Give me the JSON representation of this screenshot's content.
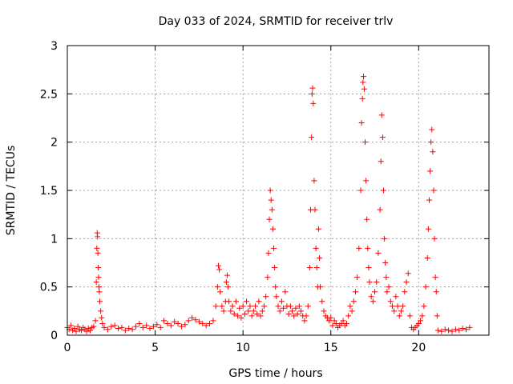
{
  "chart_data": {
    "type": "scatter",
    "title": "Day 033 of 2024, SRMTID for receiver trlv",
    "xlabel": "GPS time / hours",
    "ylabel": "SRMTID / TECUs",
    "xlim": [
      0,
      24
    ],
    "ylim": [
      0,
      3
    ],
    "xticks": [
      0,
      5,
      10,
      15,
      20
    ],
    "xtick_labels": [
      "0",
      "5",
      "10",
      "15",
      "20"
    ],
    "yticks": [
      0,
      0.5,
      1,
      1.5,
      2,
      2.5,
      3
    ],
    "ytick_labels": [
      "0",
      "0.5",
      "1",
      "1.5",
      "2",
      "2.5",
      "3"
    ],
    "grid": true,
    "marker": "+",
    "color": "#ff0000",
    "series": [
      {
        "name": "SRMTID",
        "points": [
          [
            0.0,
            0.08
          ],
          [
            0.1,
            0.06
          ],
          [
            0.2,
            0.1
          ],
          [
            0.3,
            0.05
          ],
          [
            0.4,
            0.07
          ],
          [
            0.5,
            0.04
          ],
          [
            0.6,
            0.09
          ],
          [
            0.7,
            0.06
          ],
          [
            0.8,
            0.05
          ],
          [
            0.9,
            0.08
          ],
          [
            1.0,
            0.06
          ],
          [
            1.1,
            0.04
          ],
          [
            1.2,
            0.07
          ],
          [
            1.3,
            0.05
          ],
          [
            1.4,
            0.08
          ],
          [
            1.5,
            0.09
          ],
          [
            1.6,
            0.15
          ],
          [
            1.65,
            0.55
          ],
          [
            1.68,
            0.9
          ],
          [
            1.7,
            1.06
          ],
          [
            1.72,
            1.02
          ],
          [
            1.74,
            0.85
          ],
          [
            1.76,
            0.7
          ],
          [
            1.78,
            0.6
          ],
          [
            1.8,
            0.5
          ],
          [
            1.82,
            0.45
          ],
          [
            1.85,
            0.35
          ],
          [
            1.9,
            0.25
          ],
          [
            1.95,
            0.18
          ],
          [
            2.0,
            0.12
          ],
          [
            2.1,
            0.08
          ],
          [
            2.3,
            0.06
          ],
          [
            2.5,
            0.09
          ],
          [
            2.7,
            0.1
          ],
          [
            2.9,
            0.07
          ],
          [
            3.1,
            0.08
          ],
          [
            3.3,
            0.05
          ],
          [
            3.5,
            0.07
          ],
          [
            3.7,
            0.06
          ],
          [
            3.9,
            0.09
          ],
          [
            4.1,
            0.12
          ],
          [
            4.3,
            0.08
          ],
          [
            4.5,
            0.1
          ],
          [
            4.7,
            0.07
          ],
          [
            4.9,
            0.09
          ],
          [
            5.1,
            0.11
          ],
          [
            5.3,
            0.08
          ],
          [
            5.5,
            0.15
          ],
          [
            5.7,
            0.12
          ],
          [
            5.9,
            0.1
          ],
          [
            6.1,
            0.14
          ],
          [
            6.3,
            0.12
          ],
          [
            6.5,
            0.09
          ],
          [
            6.7,
            0.11
          ],
          [
            6.9,
            0.15
          ],
          [
            7.1,
            0.18
          ],
          [
            7.3,
            0.16
          ],
          [
            7.5,
            0.14
          ],
          [
            7.7,
            0.12
          ],
          [
            7.9,
            0.1
          ],
          [
            8.1,
            0.12
          ],
          [
            8.3,
            0.15
          ],
          [
            8.45,
            0.3
          ],
          [
            8.55,
            0.5
          ],
          [
            8.6,
            0.72
          ],
          [
            8.65,
            0.68
          ],
          [
            8.7,
            0.45
          ],
          [
            8.8,
            0.3
          ],
          [
            8.9,
            0.25
          ],
          [
            9.0,
            0.35
          ],
          [
            9.05,
            0.55
          ],
          [
            9.1,
            0.62
          ],
          [
            9.15,
            0.5
          ],
          [
            9.2,
            0.35
          ],
          [
            9.3,
            0.25
          ],
          [
            9.4,
            0.3
          ],
          [
            9.5,
            0.22
          ],
          [
            9.6,
            0.35
          ],
          [
            9.7,
            0.2
          ],
          [
            9.8,
            0.28
          ],
          [
            9.9,
            0.18
          ],
          [
            10.0,
            0.3
          ],
          [
            10.1,
            0.22
          ],
          [
            10.2,
            0.35
          ],
          [
            10.3,
            0.25
          ],
          [
            10.4,
            0.3
          ],
          [
            10.5,
            0.2
          ],
          [
            10.6,
            0.25
          ],
          [
            10.7,
            0.3
          ],
          [
            10.8,
            0.22
          ],
          [
            10.9,
            0.35
          ],
          [
            11.0,
            0.2
          ],
          [
            11.1,
            0.25
          ],
          [
            11.2,
            0.3
          ],
          [
            11.3,
            0.4
          ],
          [
            11.4,
            0.6
          ],
          [
            11.45,
            0.85
          ],
          [
            11.5,
            1.2
          ],
          [
            11.55,
            1.5
          ],
          [
            11.6,
            1.4
          ],
          [
            11.65,
            1.3
          ],
          [
            11.7,
            1.1
          ],
          [
            11.75,
            0.9
          ],
          [
            11.8,
            0.7
          ],
          [
            11.85,
            0.5
          ],
          [
            11.9,
            0.4
          ],
          [
            12.0,
            0.3
          ],
          [
            12.1,
            0.25
          ],
          [
            12.2,
            0.35
          ],
          [
            12.3,
            0.28
          ],
          [
            12.4,
            0.45
          ],
          [
            12.5,
            0.3
          ],
          [
            12.6,
            0.22
          ],
          [
            12.7,
            0.3
          ],
          [
            12.8,
            0.25
          ],
          [
            12.9,
            0.2
          ],
          [
            13.0,
            0.28
          ],
          [
            13.1,
            0.22
          ],
          [
            13.2,
            0.3
          ],
          [
            13.3,
            0.25
          ],
          [
            13.4,
            0.2
          ],
          [
            13.5,
            0.15
          ],
          [
            13.6,
            0.2
          ],
          [
            13.7,
            0.3
          ],
          [
            13.8,
            0.7
          ],
          [
            13.85,
            1.3
          ],
          [
            13.9,
            2.05
          ],
          [
            13.93,
            2.5
          ],
          [
            13.96,
            2.56
          ],
          [
            14.0,
            2.4
          ],
          [
            14.05,
            1.6
          ],
          [
            14.1,
            1.3
          ],
          [
            14.15,
            0.9
          ],
          [
            14.2,
            0.7
          ],
          [
            14.25,
            0.5
          ],
          [
            14.3,
            1.1
          ],
          [
            14.35,
            0.8
          ],
          [
            14.4,
            0.5
          ],
          [
            14.5,
            0.35
          ],
          [
            14.6,
            0.25
          ],
          [
            14.7,
            0.2
          ],
          [
            14.8,
            0.18
          ],
          [
            14.9,
            0.15
          ],
          [
            15.0,
            0.18
          ],
          [
            15.1,
            0.1
          ],
          [
            15.2,
            0.15
          ],
          [
            15.3,
            0.12
          ],
          [
            15.4,
            0.08
          ],
          [
            15.5,
            0.1
          ],
          [
            15.6,
            0.12
          ],
          [
            15.7,
            0.15
          ],
          [
            15.8,
            0.1
          ],
          [
            15.9,
            0.12
          ],
          [
            16.0,
            0.2
          ],
          [
            16.1,
            0.3
          ],
          [
            16.2,
            0.25
          ],
          [
            16.3,
            0.35
          ],
          [
            16.4,
            0.45
          ],
          [
            16.5,
            0.6
          ],
          [
            16.6,
            0.9
          ],
          [
            16.7,
            1.5
          ],
          [
            16.75,
            2.2
          ],
          [
            16.8,
            2.45
          ],
          [
            16.83,
            2.62
          ],
          [
            16.86,
            2.68
          ],
          [
            16.9,
            2.55
          ],
          [
            16.95,
            2.0
          ],
          [
            17.0,
            1.6
          ],
          [
            17.05,
            1.2
          ],
          [
            17.1,
            0.9
          ],
          [
            17.15,
            0.7
          ],
          [
            17.2,
            0.55
          ],
          [
            17.3,
            0.4
          ],
          [
            17.4,
            0.35
          ],
          [
            17.5,
            0.45
          ],
          [
            17.6,
            0.55
          ],
          [
            17.7,
            0.85
          ],
          [
            17.8,
            1.3
          ],
          [
            17.85,
            1.8
          ],
          [
            17.9,
            2.28
          ],
          [
            17.95,
            2.05
          ],
          [
            18.0,
            1.5
          ],
          [
            18.05,
            1.0
          ],
          [
            18.1,
            0.75
          ],
          [
            18.15,
            0.6
          ],
          [
            18.2,
            0.45
          ],
          [
            18.3,
            0.5
          ],
          [
            18.4,
            0.35
          ],
          [
            18.5,
            0.3
          ],
          [
            18.6,
            0.25
          ],
          [
            18.7,
            0.4
          ],
          [
            18.8,
            0.3
          ],
          [
            18.9,
            0.2
          ],
          [
            19.0,
            0.25
          ],
          [
            19.1,
            0.3
          ],
          [
            19.2,
            0.45
          ],
          [
            19.3,
            0.55
          ],
          [
            19.4,
            0.64
          ],
          [
            19.5,
            0.2
          ],
          [
            19.6,
            0.08
          ],
          [
            19.7,
            0.06
          ],
          [
            19.8,
            0.08
          ],
          [
            19.9,
            0.1
          ],
          [
            20.0,
            0.12
          ],
          [
            20.1,
            0.15
          ],
          [
            20.2,
            0.2
          ],
          [
            20.3,
            0.3
          ],
          [
            20.4,
            0.5
          ],
          [
            20.5,
            0.8
          ],
          [
            20.55,
            1.1
          ],
          [
            20.6,
            1.4
          ],
          [
            20.65,
            1.7
          ],
          [
            20.7,
            2.0
          ],
          [
            20.75,
            2.13
          ],
          [
            20.8,
            1.9
          ],
          [
            20.85,
            1.5
          ],
          [
            20.9,
            1.0
          ],
          [
            20.95,
            0.6
          ],
          [
            21.0,
            0.45
          ],
          [
            21.05,
            0.2
          ],
          [
            21.1,
            0.05
          ],
          [
            21.3,
            0.04
          ],
          [
            21.5,
            0.06
          ],
          [
            21.7,
            0.05
          ],
          [
            21.9,
            0.04
          ],
          [
            22.1,
            0.06
          ],
          [
            22.3,
            0.05
          ],
          [
            22.5,
            0.07
          ],
          [
            22.7,
            0.06
          ],
          [
            22.9,
            0.08
          ]
        ]
      }
    ]
  }
}
